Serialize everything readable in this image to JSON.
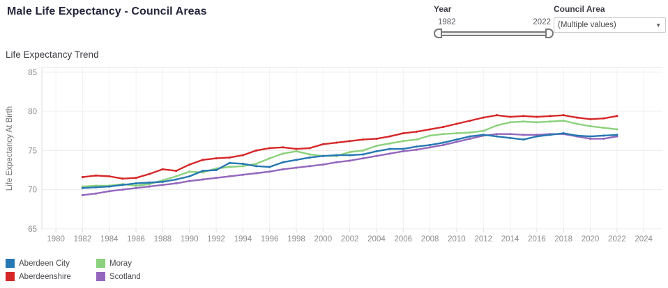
{
  "header": {
    "title": "Male Life Expectancy - Council Areas"
  },
  "filters": {
    "year": {
      "label": "Year",
      "min": "1982",
      "max": "2022"
    },
    "council_area": {
      "label": "Council Area",
      "value": "(Multiple values)",
      "caret_icon": "▼"
    }
  },
  "section": {
    "title": "Life Expectancy Trend"
  },
  "chart_data": {
    "type": "line",
    "title": "Life Expectancy Trend",
    "xlabel": "",
    "ylabel": "Life Expectancy At Birth",
    "xlim": [
      1978.95,
      2025.4
    ],
    "ylim": [
      64.9,
      85.6
    ],
    "x_ticks": [
      1980,
      1982,
      1984,
      1986,
      1988,
      1990,
      1992,
      1994,
      1996,
      1998,
      2000,
      2002,
      2004,
      2006,
      2008,
      2010,
      2012,
      2014,
      2016,
      2018,
      2020,
      2022,
      2024
    ],
    "y_ticks": [
      65,
      70,
      75,
      80,
      85
    ],
    "grid": true,
    "legend_position": "bottom-left",
    "x": [
      1982,
      1983,
      1984,
      1985,
      1986,
      1987,
      1988,
      1989,
      1990,
      1991,
      1992,
      1993,
      1994,
      1995,
      1996,
      1997,
      1998,
      1999,
      2000,
      2001,
      2002,
      2003,
      2004,
      2005,
      2006,
      2007,
      2008,
      2009,
      2010,
      2011,
      2012,
      2013,
      2014,
      2015,
      2016,
      2017,
      2018,
      2019,
      2020,
      2021,
      2022
    ],
    "series": [
      {
        "name": "Aberdeen City",
        "color": "#2678B2",
        "values": [
          70.2,
          70.3,
          70.4,
          70.6,
          70.8,
          70.9,
          71.0,
          71.3,
          71.7,
          72.4,
          72.5,
          73.4,
          73.3,
          73.0,
          72.9,
          73.5,
          73.8,
          74.1,
          74.3,
          74.4,
          74.4,
          74.5,
          74.9,
          75.2,
          75.2,
          75.5,
          75.7,
          76.0,
          76.4,
          76.8,
          77.0,
          76.8,
          76.6,
          76.4,
          76.8,
          77.0,
          77.2,
          76.9,
          76.8,
          76.9,
          77.0
        ]
      },
      {
        "name": "Aberdeenshire",
        "color": "#D62728",
        "values": [
          71.6,
          71.8,
          71.7,
          71.4,
          71.5,
          72.0,
          72.6,
          72.4,
          73.2,
          73.8,
          74.0,
          74.1,
          74.4,
          75.0,
          75.3,
          75.4,
          75.2,
          75.3,
          75.8,
          76.0,
          76.2,
          76.4,
          76.5,
          76.8,
          77.2,
          77.4,
          77.7,
          78.0,
          78.4,
          78.8,
          79.2,
          79.5,
          79.3,
          79.4,
          79.3,
          79.4,
          79.5,
          79.2,
          79.0,
          79.1,
          79.4
        ]
      },
      {
        "name": "Moray",
        "color": "#8CD17D",
        "values": [
          70.4,
          70.5,
          70.5,
          70.7,
          70.5,
          70.7,
          71.2,
          71.7,
          72.3,
          72.2,
          72.7,
          72.9,
          73.0,
          73.3,
          74.0,
          74.6,
          74.9,
          74.5,
          74.3,
          74.3,
          74.8,
          75.0,
          75.6,
          75.9,
          76.2,
          76.4,
          76.9,
          77.1,
          77.2,
          77.3,
          77.5,
          78.2,
          78.6,
          78.7,
          78.6,
          78.7,
          78.8,
          78.4,
          78.1,
          77.9,
          77.7
        ]
      },
      {
        "name": "Scotland",
        "color": "#9467BD",
        "values": [
          69.3,
          69.5,
          69.8,
          70.0,
          70.2,
          70.4,
          70.6,
          70.8,
          71.1,
          71.3,
          71.5,
          71.7,
          71.9,
          72.1,
          72.3,
          72.6,
          72.8,
          73.0,
          73.2,
          73.5,
          73.7,
          74.0,
          74.3,
          74.6,
          74.9,
          75.1,
          75.4,
          75.7,
          76.1,
          76.5,
          76.9,
          77.1,
          77.1,
          77.0,
          77.0,
          77.1,
          77.1,
          76.8,
          76.5,
          76.5,
          76.8
        ]
      }
    ]
  }
}
